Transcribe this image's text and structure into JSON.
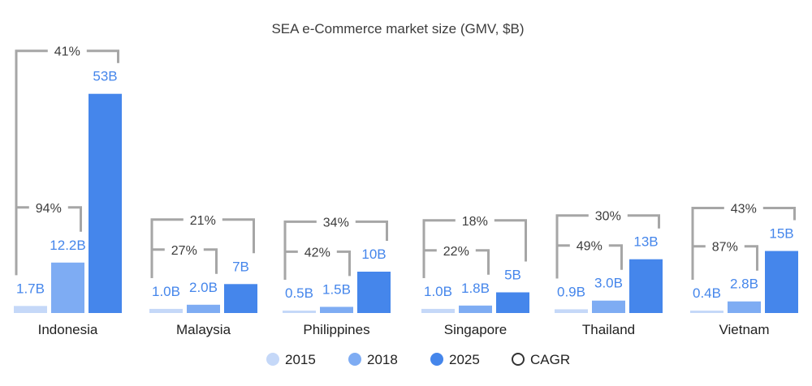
{
  "chart_data": {
    "type": "bar",
    "title": "SEA e-Commerce market size (GMV, $B)",
    "categories": [
      "Indonesia",
      "Malaysia",
      "Philippines",
      "Singapore",
      "Thailand",
      "Vietnam"
    ],
    "series": [
      {
        "name": "2015",
        "color": "#c5d8f8",
        "values": [
          1.7,
          1.0,
          0.5,
          1.0,
          0.9,
          0.4
        ],
        "labels": [
          "1.7B",
          "1.0B",
          "0.5B",
          "1.0B",
          "0.9B",
          "0.4B"
        ]
      },
      {
        "name": "2018",
        "color": "#7eacf3",
        "values": [
          12.2,
          2.0,
          1.5,
          1.8,
          3.0,
          2.8
        ],
        "labels": [
          "12.2B",
          "2.0B",
          "1.5B",
          "1.8B",
          "3.0B",
          "2.8B"
        ]
      },
      {
        "name": "2025",
        "color": "#4586eb",
        "values": [
          53,
          7,
          10,
          5,
          13,
          15
        ],
        "labels": [
          "53B",
          "7B",
          "10B",
          "5B",
          "13B",
          "15B"
        ]
      }
    ],
    "cagr_2015_2018": [
      "94%",
      "27%",
      "42%",
      "22%",
      "49%",
      "87%"
    ],
    "cagr_2015_2025": [
      "41%",
      "21%",
      "34%",
      "18%",
      "30%",
      "43%"
    ],
    "legend": [
      {
        "label": "2015",
        "color": "#c5d8f8"
      },
      {
        "label": "2018",
        "color": "#7eacf3"
      },
      {
        "label": "2025",
        "color": "#4586eb"
      },
      {
        "label": "CAGR",
        "color": "none"
      }
    ],
    "legend_position": "bottom-center",
    "value_label_color": "#4586eb",
    "bracket_color": "#a6a6a6",
    "grid": false
  }
}
